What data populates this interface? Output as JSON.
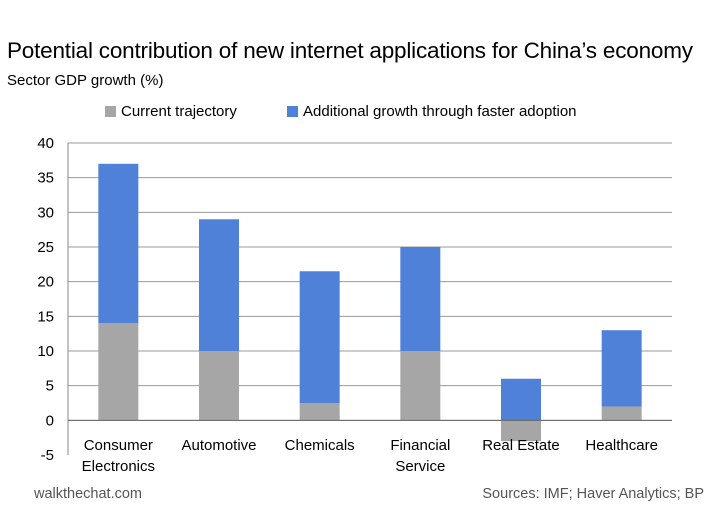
{
  "title": "Potential contribution of new internet applications for China’s economy",
  "chart_data": {
    "type": "bar",
    "stacked": true,
    "title": "Potential contribution of new internet applications for China’s economy",
    "ylabel": "Sector GDP growth (%)",
    "xlabel": "",
    "categories": [
      [
        "Consumer",
        "Electronics"
      ],
      [
        "Automotive"
      ],
      [
        "Chemicals"
      ],
      [
        "Financial",
        "Service"
      ],
      [
        "Real Estate"
      ],
      [
        "Healthcare"
      ]
    ],
    "series": [
      {
        "name": "Current trajectory",
        "color": "#a6a6a6",
        "values": [
          14,
          10,
          2.5,
          10,
          -3,
          2
        ]
      },
      {
        "name": "Additional growth through faster adoption",
        "color": "#4f81d9",
        "values": [
          23,
          19,
          19,
          15,
          6,
          11
        ]
      }
    ],
    "ylim": [
      -5,
      40
    ],
    "yticks": [
      -5,
      0,
      5,
      10,
      15,
      20,
      25,
      30,
      35,
      40
    ],
    "grid": true,
    "legend_position": "top"
  },
  "footer": {
    "site": "walkthechat.com",
    "sources": "Sources: IMF; Haver Analytics; BP"
  }
}
